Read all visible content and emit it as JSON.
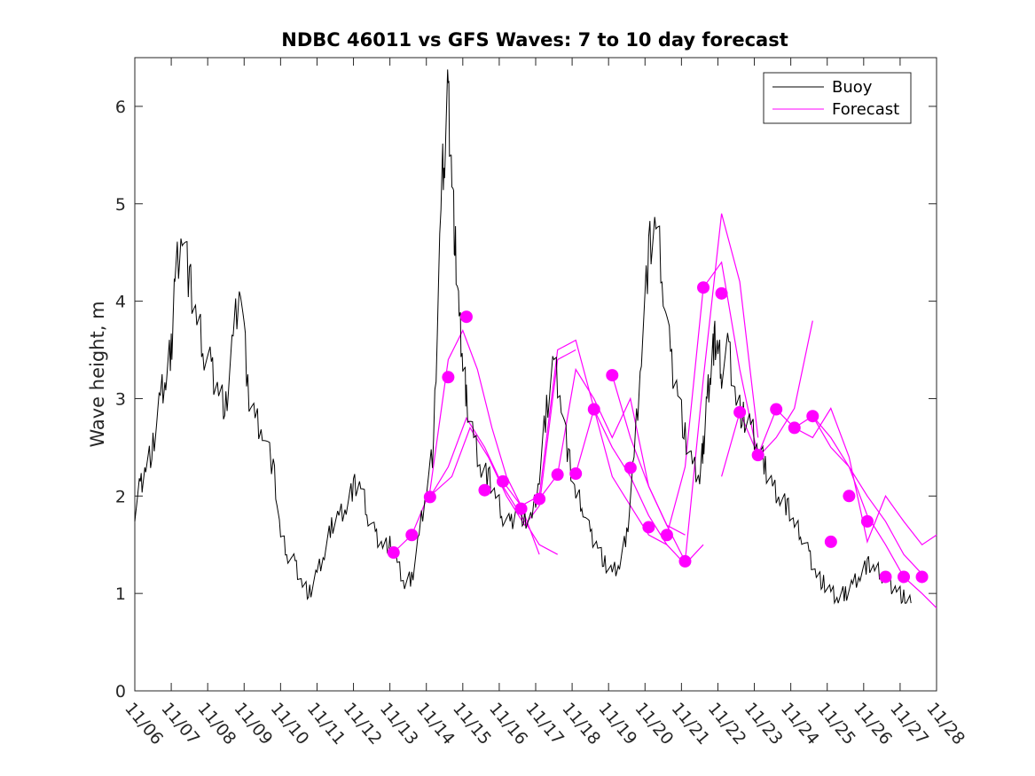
{
  "colors": {
    "buoy": "#000000",
    "forecast": "#ff00ff",
    "axis": "#262626"
  },
  "chart_data": {
    "type": "line",
    "title": "NDBC 46011 vs GFS Waves: 7 to 10 day forecast",
    "xlabel": "",
    "ylabel": "Wave height, m",
    "xlim": [
      0,
      22
    ],
    "ylim": [
      0,
      6.5
    ],
    "yticks": [
      0,
      1,
      2,
      3,
      4,
      5,
      6
    ],
    "xtick_labels": [
      "11/06",
      "11/07",
      "11/08",
      "11/09",
      "11/10",
      "11/11",
      "11/12",
      "11/13",
      "11/14",
      "11/15",
      "11/16",
      "11/17",
      "11/18",
      "11/19",
      "11/20",
      "11/21",
      "11/22",
      "11/23",
      "11/24",
      "11/25",
      "11/26",
      "11/27",
      "11/28"
    ],
    "legend": {
      "position": "top-right",
      "entries": [
        "Buoy",
        "Forecast"
      ]
    },
    "buoy": {
      "name": "Buoy",
      "x": [
        0,
        0.15,
        0.3,
        0.5,
        0.7,
        0.85,
        1.0,
        1.1,
        1.3,
        1.5,
        1.7,
        1.9,
        2.1,
        2.3,
        2.5,
        2.7,
        2.9,
        3.1,
        3.3,
        3.5,
        3.8,
        4.0,
        4.2,
        4.4,
        4.6,
        4.8,
        5.0,
        5.2,
        5.4,
        5.6,
        5.8,
        6.0,
        6.2,
        6.4,
        6.6,
        6.8,
        7.0,
        7.2,
        7.4,
        7.6,
        7.8,
        8.0,
        8.2,
        8.4,
        8.5,
        8.6,
        8.7,
        8.8,
        8.9,
        9.0,
        9.1,
        9.3,
        9.5,
        9.7,
        9.9,
        10.1,
        10.3,
        10.5,
        10.7,
        10.9,
        11.1,
        11.3,
        11.5,
        11.7,
        11.9,
        12.1,
        12.3,
        12.5,
        12.7,
        12.9,
        13.1,
        13.3,
        13.5,
        13.7,
        13.9,
        14.1,
        14.3,
        14.5,
        14.7,
        14.9,
        15.1,
        15.3,
        15.5,
        15.6,
        15.7,
        15.8,
        15.9,
        16.0,
        16.1,
        16.3,
        16.5,
        16.7,
        16.9,
        17.1,
        17.3,
        17.5,
        17.7,
        17.9,
        18.1,
        18.3,
        18.5,
        18.7,
        18.9,
        19.1,
        19.3,
        19.5,
        19.7,
        19.9,
        20.1,
        20.3,
        20.5,
        20.7,
        20.9,
        21.1,
        21.3
      ],
      "values": [
        1.85,
        2.1,
        2.3,
        2.5,
        3.0,
        3.2,
        3.5,
        4.2,
        4.8,
        4.2,
        3.8,
        3.5,
        3.3,
        3.1,
        2.9,
        3.6,
        4.2,
        3.1,
        2.8,
        2.7,
        2.3,
        1.6,
        1.4,
        1.3,
        1.1,
        1.0,
        1.2,
        1.4,
        1.7,
        1.8,
        1.9,
        2.1,
        2.1,
        1.8,
        1.6,
        1.5,
        1.5,
        1.3,
        1.1,
        1.15,
        1.6,
        2.1,
        2.5,
        5.0,
        5.6,
        6.1,
        5.3,
        4.5,
        3.8,
        3.4,
        3.0,
        2.6,
        2.3,
        2.2,
        2.0,
        1.8,
        1.7,
        1.9,
        1.75,
        1.75,
        2.2,
        2.9,
        3.4,
        3.0,
        2.4,
        2.0,
        1.9,
        1.6,
        1.5,
        1.3,
        1.2,
        1.3,
        1.6,
        2.4,
        3.5,
        4.5,
        4.8,
        4.2,
        3.4,
        3.1,
        2.6,
        2.3,
        2.2,
        2.5,
        3.0,
        3.3,
        3.6,
        3.5,
        3.3,
        3.5,
        3.0,
        2.8,
        2.7,
        2.5,
        2.3,
        2.1,
        2.0,
        1.9,
        1.7,
        1.6,
        1.4,
        1.2,
        1.1,
        1.0,
        0.95,
        1.0,
        1.1,
        1.2,
        1.3,
        1.25,
        1.2,
        1.1,
        1.05,
        0.95,
        0.9
      ]
    },
    "forecast_points": {
      "name": "Forecast",
      "x": [
        7.1,
        7.6,
        8.1,
        8.6,
        9.1,
        9.6,
        10.1,
        10.6,
        11.1,
        11.6,
        12.1,
        12.6,
        13.1,
        13.6,
        14.1,
        14.6,
        15.1,
        15.6,
        16.1,
        16.6,
        17.1,
        17.6,
        18.1,
        18.6,
        19.1,
        19.6,
        20.1,
        20.6,
        21.1,
        21.6
      ],
      "values": [
        1.42,
        1.6,
        1.99,
        3.22,
        3.84,
        2.06,
        2.15,
        1.87,
        1.97,
        2.22,
        2.23,
        2.89,
        3.24,
        2.29,
        1.68,
        1.6,
        1.33,
        4.14,
        4.08,
        2.86,
        2.42,
        2.89,
        2.7,
        2.82,
        1.53,
        2.0,
        1.74,
        1.17,
        1.17,
        1.17
      ]
    },
    "forecast_lines": [
      {
        "name": "Forecast",
        "x": [
          7.1,
          7.6,
          8.1,
          8.6,
          9.0,
          9.4,
          9.8,
          10.2,
          10.6,
          11.1
        ],
        "values": [
          1.42,
          1.6,
          2.05,
          3.4,
          3.7,
          3.3,
          2.7,
          2.2,
          1.9,
          1.4
        ]
      },
      {
        "name": "Forecast",
        "x": [
          8.1,
          8.6,
          9.1,
          9.6,
          10.1,
          10.6,
          11.1,
          11.6
        ],
        "values": [
          1.99,
          2.3,
          2.8,
          2.5,
          2.1,
          1.8,
          1.5,
          1.4
        ]
      },
      {
        "name": "Forecast",
        "x": [
          8.1,
          8.7,
          9.2,
          9.7,
          10.2,
          10.7,
          11.1,
          11.6,
          12.1
        ],
        "values": [
          2.0,
          2.2,
          2.7,
          2.4,
          2.0,
          1.7,
          1.9,
          3.4,
          3.5
        ]
      },
      {
        "name": "Forecast",
        "x": [
          10.1,
          10.6,
          11.1,
          11.6,
          12.1,
          12.6,
          13.1,
          13.6,
          14.1,
          14.6
        ],
        "values": [
          2.15,
          1.9,
          2.0,
          3.5,
          3.6,
          2.9,
          2.2,
          1.9,
          1.6,
          1.5
        ]
      },
      {
        "name": "Forecast",
        "x": [
          11.1,
          11.6,
          12.1,
          12.6,
          13.1,
          13.6,
          14.1,
          14.6,
          15.1
        ],
        "values": [
          1.97,
          2.22,
          3.3,
          3.0,
          2.6,
          3.0,
          2.1,
          1.7,
          1.6
        ]
      },
      {
        "name": "Forecast",
        "x": [
          12.1,
          12.6,
          13.1,
          13.6,
          14.1,
          14.6,
          15.1,
          15.6
        ],
        "values": [
          2.23,
          2.89,
          2.5,
          2.2,
          1.8,
          1.5,
          1.3,
          1.5
        ]
      },
      {
        "name": "Forecast",
        "x": [
          13.1,
          13.6,
          14.1,
          14.6,
          15.1,
          15.6,
          16.1,
          16.6,
          17.1
        ],
        "values": [
          3.24,
          2.6,
          2.1,
          1.7,
          1.33,
          3.2,
          4.9,
          4.2,
          2.6
        ]
      },
      {
        "name": "Forecast",
        "x": [
          14.6,
          15.1,
          15.6,
          16.1,
          16.6,
          17.1,
          17.6,
          18.1,
          18.6
        ],
        "values": [
          1.6,
          2.3,
          4.14,
          4.4,
          3.3,
          2.4,
          2.6,
          2.9,
          3.8
        ]
      },
      {
        "name": "Forecast",
        "x": [
          16.1,
          16.6,
          17.1,
          17.6,
          18.1,
          18.6,
          19.1,
          19.6,
          20.1,
          20.6,
          21.1,
          21.6
        ],
        "values": [
          2.2,
          2.86,
          2.42,
          2.89,
          2.7,
          2.82,
          2.6,
          2.3,
          2.0,
          1.74,
          1.4,
          1.2
        ]
      },
      {
        "name": "Forecast",
        "x": [
          18.1,
          18.6,
          19.1,
          19.6,
          20.1,
          20.6,
          21.1,
          21.6,
          22.0
        ],
        "values": [
          2.7,
          2.6,
          2.9,
          2.4,
          1.53,
          2.0,
          1.74,
          1.5,
          1.6
        ]
      },
      {
        "name": "Forecast",
        "x": [
          18.6,
          19.1,
          19.6,
          20.1,
          20.6,
          21.1,
          21.6,
          22.0
        ],
        "values": [
          2.82,
          2.5,
          2.3,
          1.8,
          1.5,
          1.17,
          1.0,
          0.85
        ]
      }
    ]
  }
}
